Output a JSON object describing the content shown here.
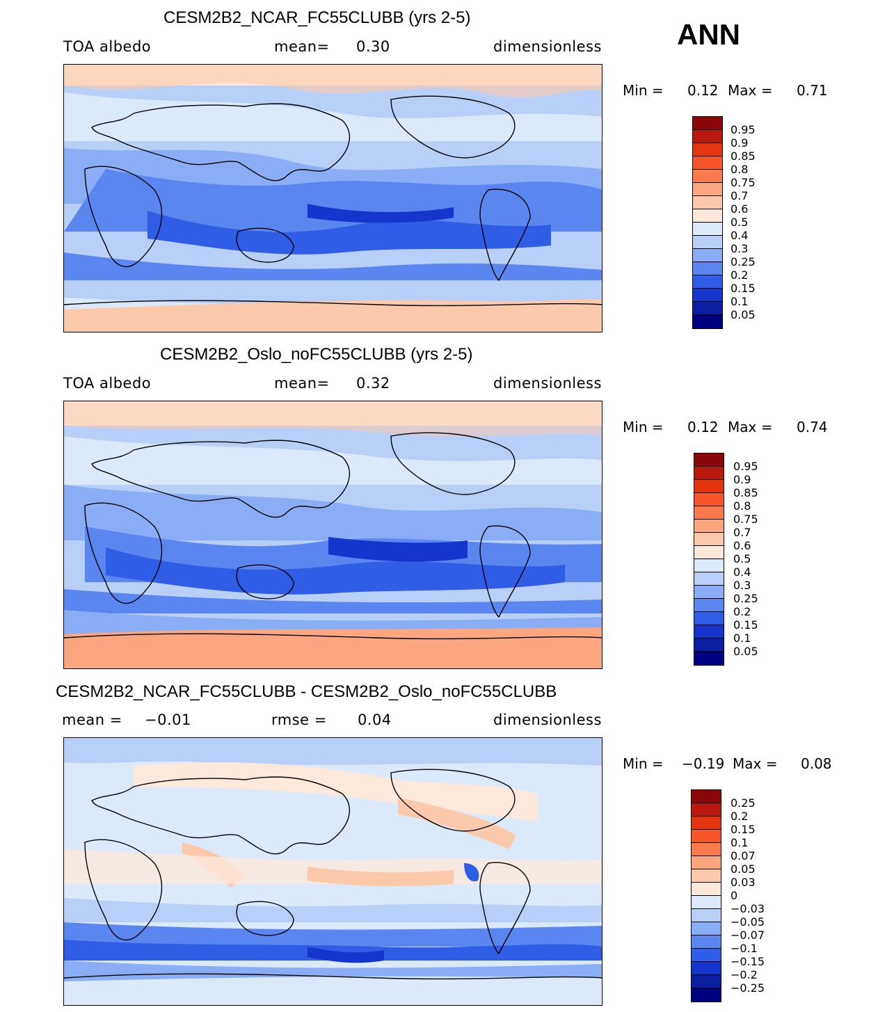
{
  "season": "ANN",
  "colors": {
    "blue_scale": [
      "#00007a",
      "#00208f",
      "#0039c6",
      "#1848e8",
      "#3a6af0",
      "#6590f5",
      "#9cbaf9",
      "#c7d9fb",
      "#e2eefc",
      "#fde9dc",
      "#fccfb8",
      "#fbaf8c",
      "#f98a5b",
      "#f6622d",
      "#e53b14",
      "#c02010",
      "#8b0808"
    ],
    "coast": "#000000"
  },
  "chart_data": [
    {
      "type": "heatmap",
      "title": "CESM2B2_NCAR_FC55CLUBB (yrs 2-5)",
      "variable": "TOA  albedo",
      "stat_label": "mean=",
      "stat_value": "0.30",
      "units": "dimensionless",
      "min_label": "Min =",
      "min_value": "0.12",
      "max_label": "Max =",
      "max_value": "0.71",
      "levels": [
        "0.95",
        "0.9",
        "0.85",
        "0.8",
        "0.75",
        "0.7",
        "0.6",
        "0.5",
        "0.4",
        "0.3",
        "0.25",
        "0.2",
        "0.15",
        "0.1",
        "0.05"
      ],
      "level_colors": [
        "#8b0808",
        "#b8180e",
        "#e3350f",
        "#f6552a",
        "#f97a4c",
        "#fba67f",
        "#fcc9aa",
        "#fde9dc",
        "#dbe9fb",
        "#b8cff8",
        "#8aaef5",
        "#5a86f0",
        "#2f5de6",
        "#1436cc",
        "#0a20a0",
        "#000080"
      ]
    },
    {
      "type": "heatmap",
      "title": "CESM2B2_Oslo_noFC55CLUBB (yrs 2-5)",
      "variable": "TOA  albedo",
      "stat_label": "mean=",
      "stat_value": "0.32",
      "units": "dimensionless",
      "min_label": "Min =",
      "min_value": "0.12",
      "max_label": "Max =",
      "max_value": "0.74",
      "levels": [
        "0.95",
        "0.9",
        "0.85",
        "0.8",
        "0.75",
        "0.7",
        "0.6",
        "0.5",
        "0.4",
        "0.3",
        "0.25",
        "0.2",
        "0.15",
        "0.1",
        "0.05"
      ],
      "level_colors": [
        "#8b0808",
        "#b8180e",
        "#e3350f",
        "#f6552a",
        "#f97a4c",
        "#fba67f",
        "#fcc9aa",
        "#fde9dc",
        "#dbe9fb",
        "#b8cff8",
        "#8aaef5",
        "#5a86f0",
        "#2f5de6",
        "#1436cc",
        "#0a20a0",
        "#000080"
      ]
    },
    {
      "type": "heatmap",
      "title": "CESM2B2_NCAR_FC55CLUBB - CESM2B2_Oslo_noFC55CLUBB",
      "stat_label": "mean =",
      "stat_value": "−0.01",
      "stat2_label": "rmse =",
      "stat2_value": "0.04",
      "units": "dimensionless",
      "min_label": "Min =",
      "min_value": "−0.19",
      "max_label": "Max =",
      "max_value": "0.08",
      "levels": [
        "0.25",
        "0.2",
        "0.15",
        "0.1",
        "0.07",
        "0.05",
        "0.03",
        "0",
        "−0.03",
        "−0.05",
        "−0.07",
        "−0.1",
        "−0.15",
        "−0.2",
        "−0.25"
      ],
      "level_colors": [
        "#8b0808",
        "#b8180e",
        "#e3350f",
        "#f6552a",
        "#f97a4c",
        "#fba67f",
        "#fcc9aa",
        "#fde9dc",
        "#dbe9fb",
        "#b8cff8",
        "#8aaef5",
        "#5a86f0",
        "#2f5de6",
        "#1436cc",
        "#0a20a0",
        "#000080"
      ]
    }
  ]
}
